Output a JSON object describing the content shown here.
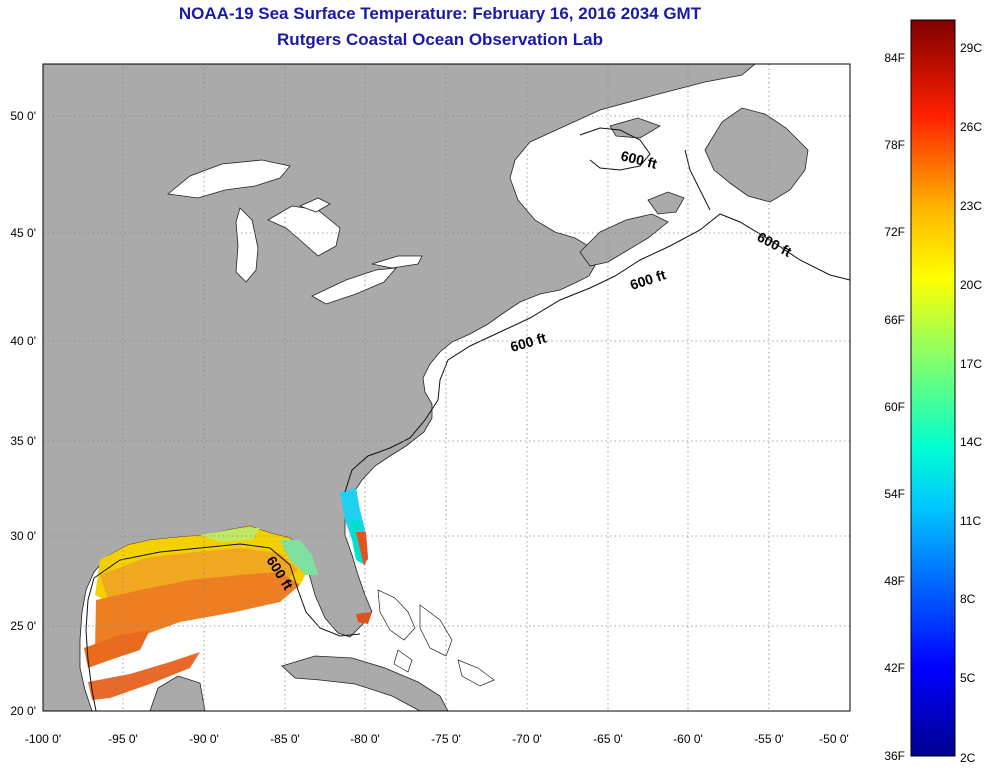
{
  "title": "NOAA-19 Sea Surface Temperature:  February 16, 2016 2034 GMT",
  "subtitle": "Rutgers Coastal Ocean Observation Lab",
  "latitude_labels": [
    "50 0'",
    "45 0'",
    "40 0'",
    "35 0'",
    "30 0'",
    "25 0'",
    "20 0'"
  ],
  "longitude_labels": [
    "-100 0'",
    "-95 0'",
    "-90 0'",
    "-85 0'",
    "-80 0'",
    "-75 0'",
    "-70 0'",
    "-65 0'",
    "-60 0'",
    "-55 0'",
    "-50 0'"
  ],
  "contour_labels": [
    "600 ft",
    "600 ft",
    "600 ft",
    "600 ft",
    "600 ft"
  ],
  "colorbar": {
    "fahrenheit_labels": [
      "84F",
      "78F",
      "72F",
      "66F",
      "60F",
      "54F",
      "48F",
      "42F",
      "36F"
    ],
    "celsius_labels": [
      "29C",
      "26C",
      "23C",
      "20C",
      "17C",
      "14C",
      "11C",
      "8C",
      "5C",
      "2C"
    ]
  },
  "colors": {
    "title": "#1a1aa6",
    "land": "#aaaaaa",
    "water": "#ffffff",
    "grid": "#888888"
  }
}
